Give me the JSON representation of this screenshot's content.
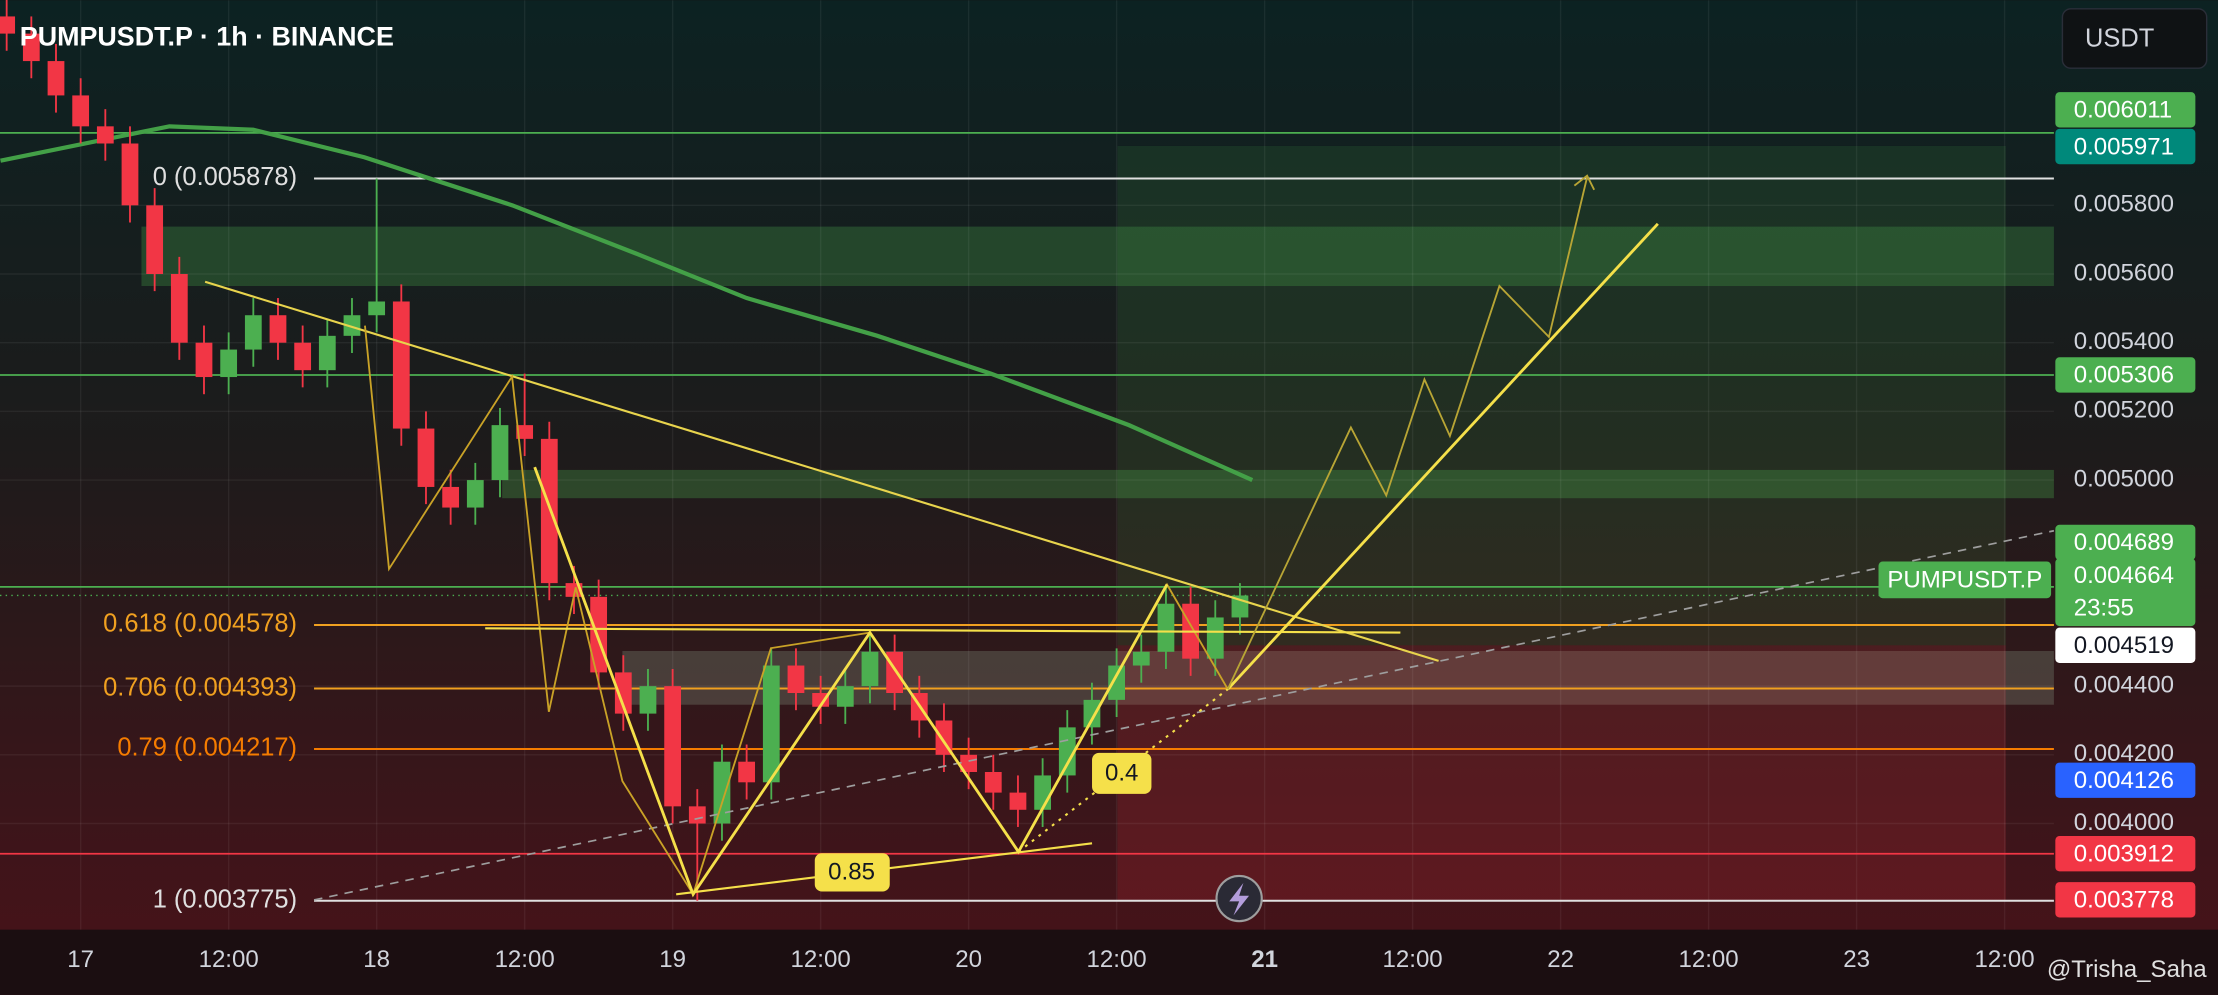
{
  "chart_data": {
    "type": "candlestick",
    "title": "PUMPUSDT.P · 1h · BINANCE",
    "currency": "USDT",
    "watermark": "@Trisha_Saha",
    "xlim": [
      -6.54,
      160.0
    ],
    "xticks": [
      {
        "value": 0,
        "label": "17"
      },
      {
        "value": 12,
        "label": "12:00"
      },
      {
        "value": 24,
        "label": "18"
      },
      {
        "value": 36,
        "label": "12:00"
      },
      {
        "value": 48,
        "label": "19"
      },
      {
        "value": 60,
        "label": "12:00"
      },
      {
        "value": 72,
        "label": "20"
      },
      {
        "value": 84,
        "label": "12:00"
      },
      {
        "value": 96,
        "label": "21"
      },
      {
        "value": 108,
        "label": "12:00"
      },
      {
        "value": 120,
        "label": "22"
      },
      {
        "value": 132,
        "label": "12:00"
      },
      {
        "value": 144,
        "label": "23"
      },
      {
        "value": 156,
        "label": "12:00"
      }
    ],
    "ylim": [
      0.003691,
      0.006397
    ],
    "yticks": [
      {
        "value": 0.0058,
        "label": "0.005800"
      },
      {
        "value": 0.0056,
        "label": "0.005600"
      },
      {
        "value": 0.0054,
        "label": "0.005400"
      },
      {
        "value": 0.0052,
        "label": "0.005200"
      },
      {
        "value": 0.005,
        "label": "0.005000"
      },
      {
        "value": 0.0044,
        "label": "0.004400"
      },
      {
        "value": 0.0042,
        "label": "0.004200"
      },
      {
        "value": 0.004,
        "label": "0.004000"
      }
    ],
    "grid": true,
    "up_color": "#4caf50",
    "down_color": "#f23645",
    "candles": {
      "x": [
        -6,
        -4,
        -2,
        0,
        2,
        4,
        6,
        8,
        10,
        12,
        14,
        16,
        18,
        20,
        22,
        24,
        26,
        28,
        30,
        32,
        34,
        36,
        38,
        40,
        42,
        44,
        46,
        48,
        50,
        52,
        54,
        56,
        58,
        60,
        62,
        64,
        66,
        68,
        70,
        72,
        74,
        76,
        78,
        80,
        82,
        84,
        86,
        88,
        90,
        92,
        94
      ],
      "open": [
        0.00635,
        0.0063,
        0.00622,
        0.00612,
        0.00603,
        0.00598,
        0.0058,
        0.0056,
        0.0054,
        0.0053,
        0.00538,
        0.00548,
        0.0054,
        0.00532,
        0.00542,
        0.00548,
        0.00552,
        0.00515,
        0.00498,
        0.00492,
        0.005,
        0.00516,
        0.00512,
        0.0047,
        0.00466,
        0.00444,
        0.00432,
        0.0044,
        0.00405,
        0.004,
        0.00418,
        0.00412,
        0.00446,
        0.00438,
        0.00434,
        0.0044,
        0.0045,
        0.00438,
        0.0043,
        0.0042,
        0.00415,
        0.00409,
        0.00404,
        0.00414,
        0.00428,
        0.00436,
        0.00446,
        0.0045,
        0.00464,
        0.00448,
        0.0046
      ],
      "high": [
        0.0064,
        0.00635,
        0.00627,
        0.00617,
        0.00608,
        0.00603,
        0.00585,
        0.00565,
        0.00545,
        0.00543,
        0.00553,
        0.00553,
        0.00545,
        0.00547,
        0.00553,
        0.005878,
        0.00557,
        0.0052,
        0.00503,
        0.00505,
        0.00521,
        0.00531,
        0.00517,
        0.00475,
        0.00471,
        0.00449,
        0.00445,
        0.00445,
        0.0041,
        0.00423,
        0.00423,
        0.00451,
        0.00451,
        0.00443,
        0.00445,
        0.00455,
        0.00455,
        0.00443,
        0.00435,
        0.00425,
        0.0042,
        0.00414,
        0.00419,
        0.00433,
        0.00441,
        0.00451,
        0.00455,
        0.00469,
        0.00469,
        0.00465,
        0.0047
      ],
      "low": [
        0.00625,
        0.00617,
        0.00607,
        0.00598,
        0.00593,
        0.00575,
        0.00555,
        0.00535,
        0.00525,
        0.00525,
        0.00533,
        0.00535,
        0.00527,
        0.00527,
        0.00537,
        0.00543,
        0.0051,
        0.00493,
        0.00487,
        0.00487,
        0.00495,
        0.00507,
        0.00465,
        0.00461,
        0.00439,
        0.00427,
        0.00427,
        0.004,
        0.003775,
        0.00395,
        0.00407,
        0.00407,
        0.00433,
        0.00429,
        0.00429,
        0.00435,
        0.00433,
        0.00425,
        0.00415,
        0.0041,
        0.00404,
        0.00399,
        0.00399,
        0.00409,
        0.00423,
        0.00431,
        0.00441,
        0.00445,
        0.00443,
        0.00443,
        0.00455
      ],
      "close": [
        0.0063,
        0.00622,
        0.00612,
        0.00603,
        0.00598,
        0.0058,
        0.0056,
        0.0054,
        0.0053,
        0.00538,
        0.00548,
        0.0054,
        0.00532,
        0.00542,
        0.00548,
        0.00552,
        0.00515,
        0.00498,
        0.00492,
        0.005,
        0.00516,
        0.00512,
        0.0047,
        0.00466,
        0.00444,
        0.00432,
        0.0044,
        0.00405,
        0.004,
        0.00418,
        0.00412,
        0.00446,
        0.00438,
        0.00434,
        0.0044,
        0.0045,
        0.00438,
        0.0043,
        0.0042,
        0.00415,
        0.00409,
        0.00404,
        0.00414,
        0.00428,
        0.00436,
        0.00446,
        0.0045,
        0.00464,
        0.00448,
        0.0046,
        0.004664
      ]
    },
    "moving_average": {
      "color": "#43a047",
      "x": [
        -6.5,
        7.2,
        14,
        23,
        35,
        45,
        54,
        64.6,
        73.8,
        85,
        95
      ],
      "values": [
        0.00593,
        0.00603,
        0.00602,
        0.00594,
        0.0058,
        0.00566,
        0.00553,
        0.00542,
        0.00531,
        0.00516,
        0.005
      ]
    },
    "fib_levels": [
      {
        "label": "0 (0.005878)",
        "value": 0.005878,
        "color": "#e0e0e0"
      },
      {
        "label": "0.618 (0.004578)",
        "value": 0.004578,
        "color": "#f0a020"
      },
      {
        "label": "0.706 (0.004393)",
        "value": 0.004393,
        "color": "#f0a020"
      },
      {
        "label": "0.79 (0.004217)",
        "value": 0.004217,
        "color": "#f57c00"
      },
      {
        "label": "1 (0.003775)",
        "value": 0.003775,
        "color": "#e0e0e0"
      }
    ],
    "price_levels": [
      {
        "value": 0.006011,
        "color": "#4caf50",
        "text_color": "#ffffff",
        "line": true
      },
      {
        "value": 0.005971,
        "color": "#00897b",
        "text_color": "#ffffff",
        "line": false
      },
      {
        "value": 0.005306,
        "color": "#4caf50",
        "text_color": "#ffffff",
        "line": true
      },
      {
        "value": 0.004689,
        "color": "#4caf50",
        "text_color": "#ffffff",
        "line": true
      },
      {
        "value": 0.004519,
        "color": "#ffffff",
        "text_color": "#131722",
        "line": false
      },
      {
        "value": 0.004126,
        "color": "#2962ff",
        "text_color": "#ffffff",
        "line": false
      },
      {
        "value": 0.003912,
        "color": "#f23645",
        "text_color": "#ffffff",
        "line": true
      },
      {
        "value": 0.003778,
        "color": "#f23645",
        "text_color": "#ffffff",
        "line": false
      }
    ],
    "current_price": {
      "label": "PUMPUSDT.P",
      "value": 0.004664,
      "countdown": "23:55",
      "color": "#4caf50"
    },
    "annotations": [
      {
        "text": "0.85"
      },
      {
        "text": "0.4"
      }
    ]
  }
}
